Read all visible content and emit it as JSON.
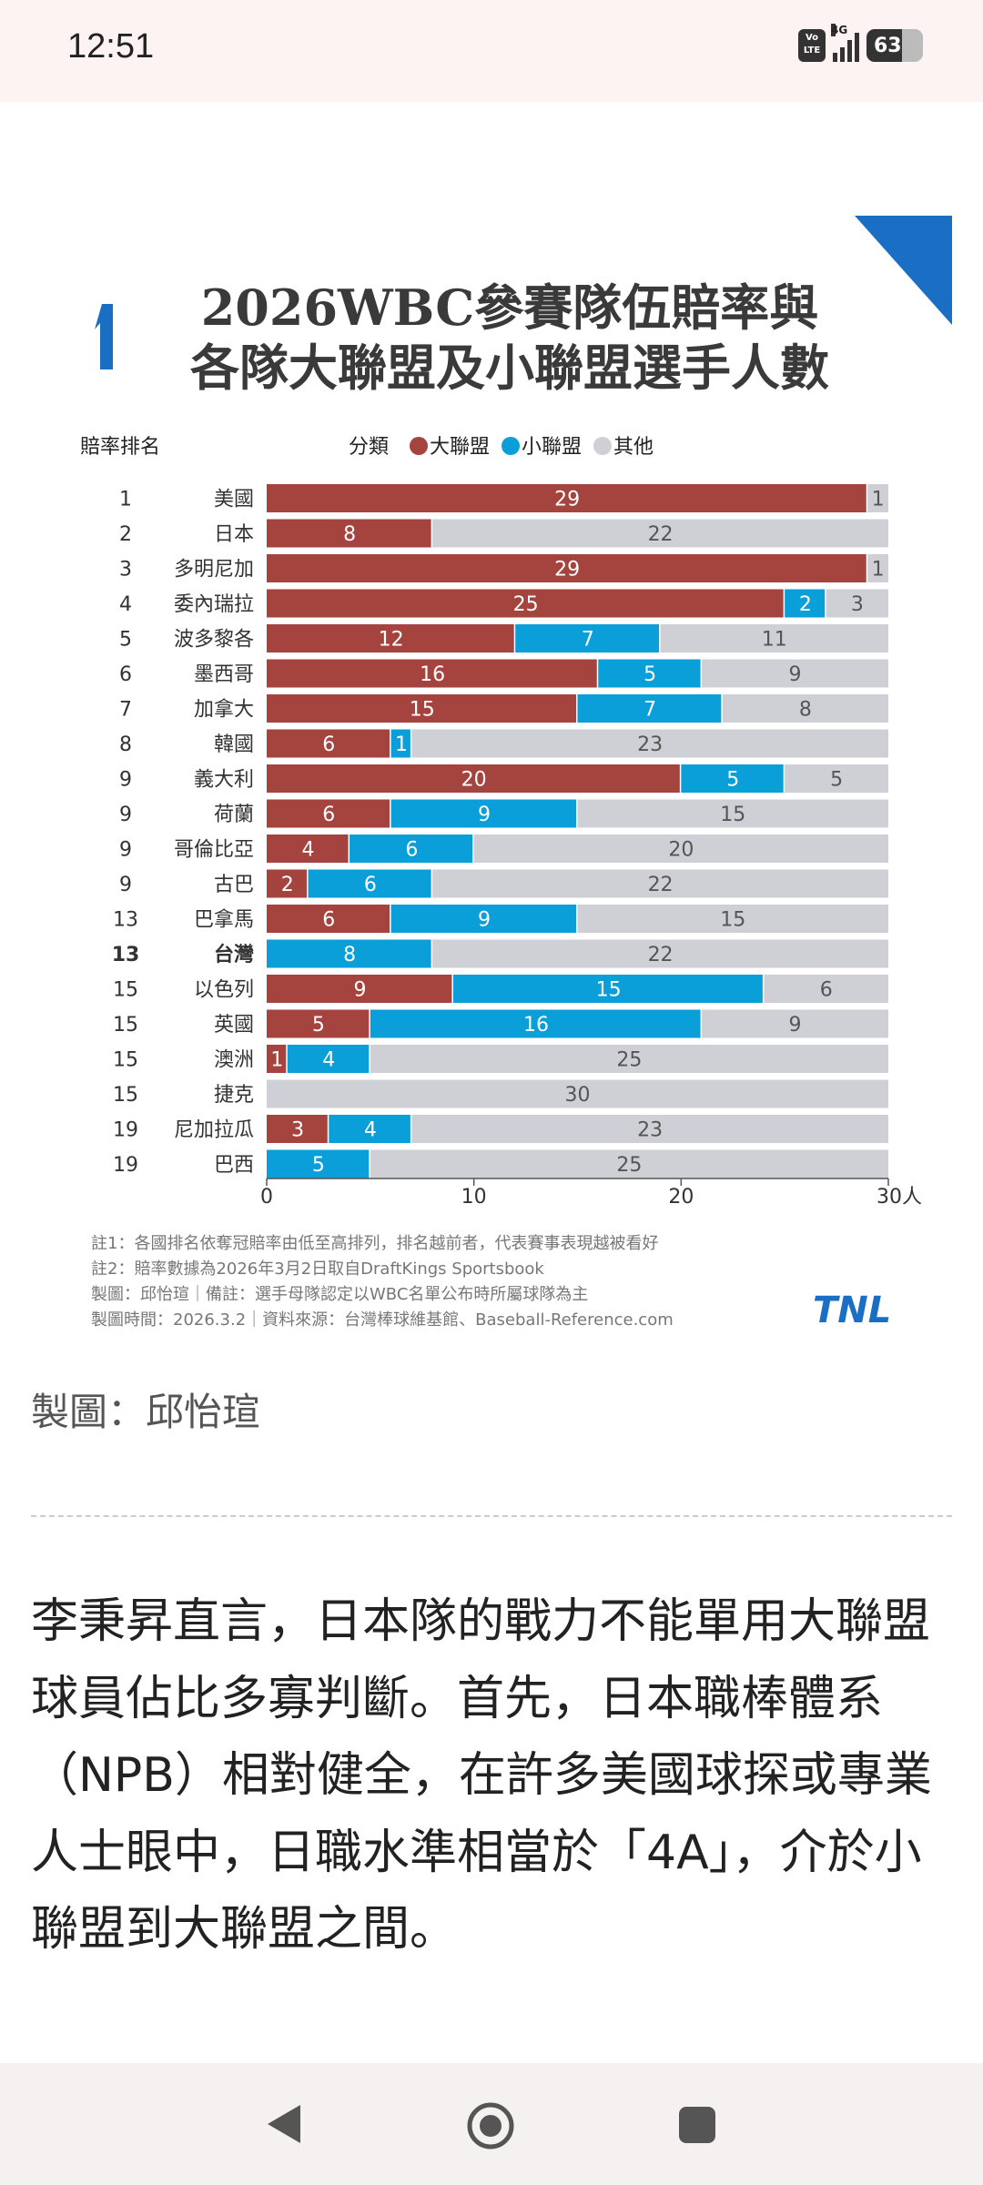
{
  "status_bar": {
    "time": "12:51",
    "volte": "Vo LTE",
    "network": "4G",
    "battery": "63"
  },
  "chart_data": {
    "type": "bar",
    "orientation": "horizontal",
    "stacked": true,
    "title_lines": [
      "2026WBC參賽隊伍賠率與",
      "各隊大聯盟及小聯盟選手人數"
    ],
    "rank_header": "賠率排名",
    "legend_title": "分類",
    "legend_position": "top",
    "series": [
      {
        "name": "大聯盟",
        "color": "#a5433f",
        "values": [
          29,
          8,
          29,
          25,
          12,
          16,
          15,
          6,
          20,
          6,
          4,
          2,
          6,
          0,
          9,
          5,
          1,
          0,
          3,
          0
        ]
      },
      {
        "name": "小聯盟",
        "color": "#0a9fd9",
        "values": [
          0,
          0,
          0,
          2,
          7,
          5,
          7,
          1,
          5,
          9,
          6,
          6,
          9,
          8,
          15,
          16,
          4,
          0,
          4,
          5
        ]
      },
      {
        "name": "其他",
        "color": "#cfd0d5",
        "values": [
          1,
          22,
          1,
          3,
          11,
          9,
          8,
          23,
          5,
          15,
          20,
          22,
          15,
          22,
          6,
          9,
          25,
          30,
          23,
          25
        ]
      }
    ],
    "categories": [
      "美國",
      "日本",
      "多明尼加",
      "委內瑞拉",
      "波多黎各",
      "墨西哥",
      "加拿大",
      "韓國",
      "義大利",
      "荷蘭",
      "哥倫比亞",
      "古巴",
      "巴拿馬",
      "台灣",
      "以色列",
      "英國",
      "澳洲",
      "捷克",
      "尼加拉瓜",
      "巴西"
    ],
    "ranks": [
      "1",
      "2",
      "3",
      "4",
      "5",
      "6",
      "7",
      "8",
      "9",
      "9",
      "9",
      "9",
      "13",
      "13",
      "15",
      "15",
      "15",
      "15",
      "19",
      "19"
    ],
    "emphasized_category": "台灣",
    "xlim": [
      0,
      30
    ],
    "xticks": [
      "0",
      "10",
      "20",
      "30人"
    ],
    "xtick_values": [
      0,
      10,
      20,
      30
    ],
    "grid": false,
    "notes": [
      "註1：各國排名依奪冠賠率由低至高排列，排名越前者，代表賽事表現越被看好",
      "註2：賠率數據為2026年3月2日取自DraftKings Sportsbook",
      "製圖：邱怡瑄｜備註：選手母隊認定以WBC名單公布時所屬球隊為主",
      "製圖時間：2026.3.2｜資料來源：台灣棒球維基館、Baseball-Reference.com"
    ],
    "logo": "TNL",
    "accent_color": "#1a6fc4"
  },
  "article": {
    "caption": "製圖：邱怡瑄",
    "paragraph": "李秉昇直言，日本隊的戰力不能單用大聯盟球員佔比多寡判斷。首先，日本職棒體系（NPB）相對健全，在許多美國球探或專業人士眼中，日職水準相當於「4A」，介於小聯盟到大聯盟之間。"
  }
}
